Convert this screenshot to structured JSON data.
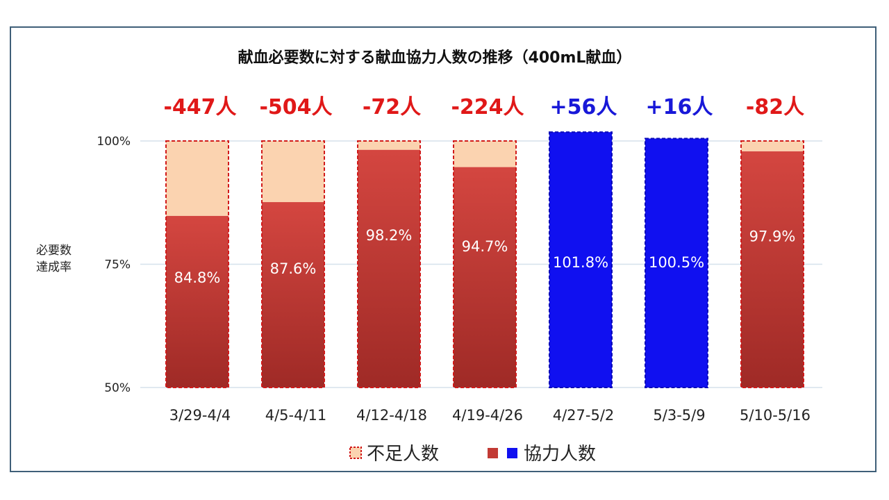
{
  "chart_data": {
    "type": "bar",
    "title": "献血必要数に対する献血協力人数の推移（400mL献血）",
    "ylabel_lines": [
      "必要数",
      "達成率"
    ],
    "ylim": [
      50,
      102
    ],
    "yticks": [
      {
        "value": 50,
        "label": "50%"
      },
      {
        "value": 75,
        "label": "75%"
      },
      {
        "value": 100,
        "label": "100%"
      }
    ],
    "grid": true,
    "categories": [
      "3/29-4/4",
      "4/5-4/11",
      "4/12-4/18",
      "4/19-4/26",
      "4/27-5/2",
      "5/3-5/9",
      "5/10-5/16"
    ],
    "values": [
      84.8,
      87.6,
      98.2,
      94.7,
      101.8,
      100.5,
      97.9
    ],
    "value_labels": [
      "84.8%",
      "87.6%",
      "98.2%",
      "94.7%",
      "101.8%",
      "100.5%",
      "97.9%"
    ],
    "differences": [
      "-447人",
      "-504人",
      "-72人",
      "-224人",
      "+56人",
      "+16人",
      "-82人"
    ],
    "legend": {
      "position": "bottom",
      "items": [
        {
          "label": "不足人数",
          "color": "#fbd3b0",
          "border": "#d11a1a"
        },
        {
          "label": "協力人数",
          "colors": [
            "#c23a34",
            "#1010f0"
          ]
        }
      ]
    },
    "colors": {
      "shortfall_fill": "#fbd3b0",
      "shortfall_border": "#d11a1a",
      "deficit_bar": "#c23a34",
      "surplus_bar": "#1010f0",
      "diff_negative": "#e01818",
      "diff_positive": "#1818d8"
    }
  }
}
